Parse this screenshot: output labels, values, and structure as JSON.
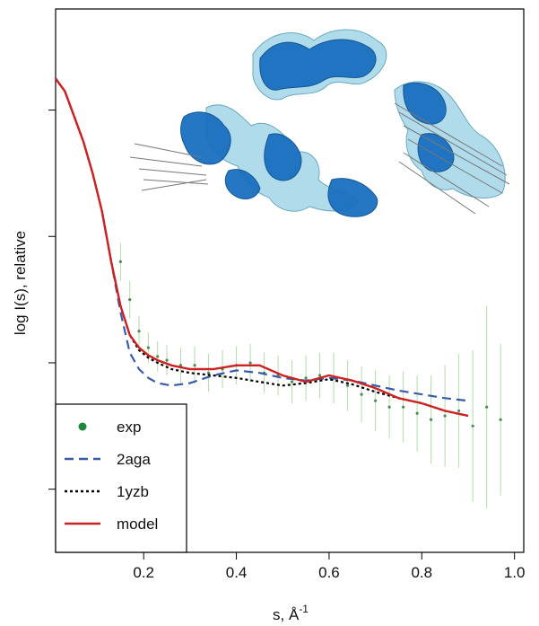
{
  "chart_data": {
    "type": "line",
    "xlabel_base": "s, Å",
    "xlabel_exponent": "-1",
    "ylabel": "log I(s), relative",
    "xlim": [
      0.01,
      1.02
    ],
    "ylim": [
      -2.0,
      2.3
    ],
    "x_ticks": [
      0.2,
      0.4,
      0.6,
      0.8,
      1.0
    ],
    "x_tick_labels": [
      "0.2",
      "0.4",
      "0.6",
      "0.8",
      "1.0"
    ],
    "y_ticks": [
      -1.5,
      -0.5,
      0.5,
      1.5
    ],
    "y_tick_labels_shown": false,
    "legend_position": "bottom-left",
    "legend": [
      {
        "label": "exp",
        "color": "#1a8a3a",
        "style": "point"
      },
      {
        "label": "2aga",
        "color": "#3a5ca8",
        "style": "dashed"
      },
      {
        "label": "1yzb",
        "color": "#000000",
        "style": "dotted"
      },
      {
        "label": "model",
        "color": "#cc2222",
        "style": "solid"
      }
    ],
    "series": [
      {
        "name": "exp",
        "color": "#1a8a3a",
        "x": [
          0.15,
          0.17,
          0.19,
          0.21,
          0.23,
          0.25,
          0.28,
          0.31,
          0.34,
          0.37,
          0.4,
          0.43,
          0.46,
          0.49,
          0.52,
          0.55,
          0.58,
          0.61,
          0.64,
          0.67,
          0.7,
          0.73,
          0.76,
          0.79,
          0.82,
          0.85,
          0.88,
          0.91,
          0.94,
          0.97
        ],
        "y": [
          0.3,
          0.0,
          -0.25,
          -0.38,
          -0.45,
          -0.48,
          -0.52,
          -0.52,
          -0.58,
          -0.55,
          -0.52,
          -0.5,
          -0.58,
          -0.6,
          -0.65,
          -0.62,
          -0.6,
          -0.62,
          -0.68,
          -0.75,
          -0.8,
          -0.85,
          -0.85,
          -0.9,
          -0.95,
          -0.92,
          -0.88,
          -1.0,
          -0.85,
          -0.95
        ],
        "err": [
          0.15,
          0.15,
          0.12,
          0.12,
          0.12,
          0.12,
          0.14,
          0.15,
          0.15,
          0.15,
          0.15,
          0.15,
          0.16,
          0.16,
          0.17,
          0.18,
          0.18,
          0.2,
          0.2,
          0.22,
          0.24,
          0.25,
          0.28,
          0.3,
          0.35,
          0.4,
          0.45,
          0.6,
          0.8,
          0.6
        ]
      },
      {
        "name": "2aga",
        "color": "#3a5ca8",
        "dash": "10,6",
        "x": [
          0.01,
          0.03,
          0.05,
          0.07,
          0.09,
          0.11,
          0.13,
          0.15,
          0.17,
          0.19,
          0.21,
          0.23,
          0.26,
          0.3,
          0.35,
          0.4,
          0.45,
          0.5,
          0.55,
          0.6,
          0.65,
          0.7,
          0.75,
          0.8,
          0.85,
          0.9
        ],
        "y": [
          1.75,
          1.65,
          1.45,
          1.25,
          1.0,
          0.7,
          0.3,
          -0.1,
          -0.42,
          -0.55,
          -0.62,
          -0.66,
          -0.68,
          -0.66,
          -0.6,
          -0.56,
          -0.58,
          -0.62,
          -0.64,
          -0.62,
          -0.64,
          -0.68,
          -0.72,
          -0.75,
          -0.78,
          -0.8
        ]
      },
      {
        "name": "1yzb",
        "color": "#000000",
        "dash": "3,3",
        "x": [
          0.01,
          0.03,
          0.05,
          0.07,
          0.09,
          0.11,
          0.13,
          0.15,
          0.17,
          0.19,
          0.21,
          0.23,
          0.26,
          0.3,
          0.35,
          0.4,
          0.45,
          0.5,
          0.55,
          0.6,
          0.65,
          0.7,
          0.75,
          0.8,
          0.85,
          0.9
        ],
        "y": [
          1.75,
          1.65,
          1.45,
          1.25,
          1.0,
          0.7,
          0.3,
          -0.05,
          -0.28,
          -0.4,
          -0.46,
          -0.5,
          -0.55,
          -0.58,
          -0.6,
          -0.62,
          -0.65,
          -0.68,
          -0.66,
          -0.63,
          -0.67,
          -0.73,
          -0.78,
          -0.82,
          -0.88,
          -0.92
        ]
      },
      {
        "name": "model",
        "color": "#cc2222",
        "dash": "",
        "x": [
          0.01,
          0.03,
          0.05,
          0.07,
          0.09,
          0.11,
          0.13,
          0.15,
          0.17,
          0.19,
          0.21,
          0.23,
          0.26,
          0.3,
          0.35,
          0.4,
          0.45,
          0.5,
          0.55,
          0.6,
          0.65,
          0.7,
          0.75,
          0.8,
          0.85,
          0.9
        ],
        "y": [
          1.75,
          1.65,
          1.45,
          1.25,
          1.0,
          0.7,
          0.3,
          -0.05,
          -0.28,
          -0.38,
          -0.44,
          -0.48,
          -0.52,
          -0.55,
          -0.55,
          -0.52,
          -0.52,
          -0.6,
          -0.65,
          -0.6,
          -0.64,
          -0.7,
          -0.78,
          -0.82,
          -0.88,
          -0.92
        ]
      }
    ]
  },
  "inset": {
    "description_name": "protein-structure-inset"
  }
}
